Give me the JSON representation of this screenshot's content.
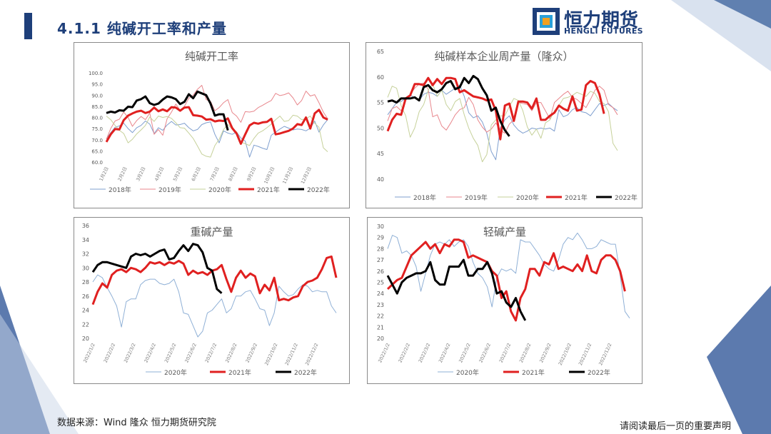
{
  "header": {
    "title": "4.1.1 纯碱开工率和产量",
    "logo_cn": "恒力期货",
    "logo_en": "HENGLI FUTURES"
  },
  "footer": {
    "source": "数据来源：Wind  隆众 恒力期货研究院",
    "disclaimer": "请阅读最后一页的重要声明"
  },
  "colors": {
    "brand": "#1e3f7a",
    "s2018": "#7f9fcf",
    "s2019": "#e8868c",
    "s2020_a": "#c6d19a",
    "s2021": "#e02020",
    "s2022": "#000000",
    "s2020_b": "#8fb0d6"
  },
  "chart_data": [
    {
      "type": "line",
      "title": "纯碱开工率",
      "y_ticks": [
        "100.0",
        "95.0",
        "90.0",
        "85.0",
        "80.0",
        "75.0",
        "70.0",
        "65.0",
        "60.0"
      ],
      "ylim": [
        60,
        100
      ],
      "x_ticks": [
        "1月2日",
        "2月2日",
        "3月2日",
        "4月2日",
        "5月2日",
        "6月2日",
        "7月2日",
        "8月2日",
        "9月2日",
        "10月2日",
        "11月2日",
        "12月2日"
      ],
      "x_count": 52,
      "series": [
        {
          "name": "2018年",
          "color": "#7f9fcf",
          "width": 1,
          "values": [
            70.4,
            73.2,
            75.6,
            76.2,
            77.4,
            75.0,
            73.2,
            75.4,
            76.4,
            78.4,
            77.0,
            72.8,
            75.4,
            74.2,
            76.6,
            78.2,
            76.6,
            76.8,
            77.4,
            75.4,
            74.0,
            74.6,
            76.8,
            77.6,
            78.0,
            72.4,
            68.6,
            74.0,
            73.0,
            72.4,
            73.4,
            70.8,
            69.4,
            62.2,
            67.6,
            67.0,
            66.2,
            65.6,
            72.0,
            73.4,
            74.8,
            76.0,
            75.2,
            74.4,
            74.8,
            74.6,
            74.0,
            75.2,
            78.4,
            73.4,
            76.6,
            79.0
          ]
        },
        {
          "name": "2019年",
          "color": "#e8868c",
          "width": 1,
          "values": [
            70.2,
            75.0,
            78.4,
            79.2,
            82.4,
            80.0,
            76.0,
            78.6,
            80.4,
            79.0,
            82.0,
            72.4,
            74.6,
            72.0,
            79.4,
            82.4,
            86.0,
            83.2,
            85.0,
            88.6,
            90.0,
            92.6,
            94.4,
            88.0,
            87.2,
            83.0,
            84.4,
            86.6,
            88.0,
            82.2,
            80.6,
            77.8,
            82.6,
            82.4,
            82.8,
            84.4,
            85.4,
            86.6,
            87.6,
            90.8,
            89.8,
            90.2,
            91.0,
            88.8,
            85.6,
            87.6,
            91.8,
            89.6,
            90.2,
            86.6,
            82.4,
            79.4
          ]
        },
        {
          "name": "2020年",
          "color": "#c6d19a",
          "width": 1,
          "values": [
            80.6,
            79.0,
            76.4,
            74.2,
            72.8,
            68.6,
            70.2,
            72.6,
            74.4,
            76.4,
            80.2,
            78.2,
            80.6,
            80.0,
            80.4,
            79.6,
            77.6,
            75.4,
            75.2,
            73.0,
            70.6,
            67.2,
            63.6,
            62.6,
            62.2,
            67.4,
            70.2,
            74.6,
            76.8,
            74.8,
            73.6,
            69.0,
            68.2,
            67.4,
            70.6,
            73.0,
            74.0,
            75.4,
            77.0,
            79.0,
            80.6,
            78.2,
            78.6,
            81.0,
            80.6,
            79.0,
            79.4,
            80.6,
            77.4,
            75.6,
            66.4,
            64.6
          ]
        },
        {
          "name": "2021年",
          "color": "#e02020",
          "width": 3,
          "values": [
            69.0,
            72.4,
            74.8,
            74.6,
            78.8,
            80.8,
            81.8,
            82.6,
            83.0,
            82.0,
            82.6,
            84.4,
            82.8,
            83.6,
            82.8,
            84.6,
            84.4,
            83.0,
            84.4,
            84.6,
            81.0,
            80.8,
            80.4,
            79.0,
            79.2,
            78.2,
            78.6,
            78.4,
            79.6,
            75.2,
            72.8,
            68.2,
            72.4,
            76.4,
            77.6,
            77.2,
            77.8,
            78.0,
            79.4,
            72.4,
            72.8,
            73.4,
            74.0,
            75.0,
            77.0,
            76.6,
            80.0,
            75.0,
            81.8,
            83.4,
            80.0,
            79.0
          ]
        },
        {
          "name": "2022年",
          "color": "#000000",
          "width": 3,
          "values": [
            82.0,
            82.6,
            82.2,
            83.2,
            83.0,
            84.8,
            84.6,
            87.6,
            88.2,
            89.4,
            86.4,
            85.6,
            86.2,
            88.0,
            89.4,
            89.0,
            88.2,
            86.0,
            87.0,
            90.4,
            88.6,
            91.6,
            90.8,
            90.0,
            86.2,
            80.8,
            81.4,
            81.4,
            74.2
          ]
        }
      ],
      "legend": [
        "2018年",
        "2019年",
        "2020年",
        "2021年",
        "2022年"
      ]
    },
    {
      "type": "line",
      "title": "纯碱样本企业周产量（隆众）",
      "y_ticks": [
        "65",
        "60",
        "55",
        "50",
        "45",
        "40"
      ],
      "ylim": [
        40,
        65
      ],
      "x_count": 52,
      "series": [
        {
          "name": "2018年",
          "color": "#7f9fcf",
          "width": 1,
          "values": [
            52.6,
            53.8,
            55.0,
            55.2,
            55.8,
            56.4,
            56.0,
            55.4,
            56.6,
            57.0,
            56.8,
            56.2,
            57.4,
            56.6,
            57.2,
            57.8,
            58.4,
            56.2,
            53.0,
            52.0,
            52.4,
            51.2,
            49.0,
            45.4,
            43.8,
            50.0,
            51.6,
            52.4,
            50.6,
            49.6,
            49.0,
            49.4,
            50.0,
            49.8,
            50.0,
            49.8,
            50.0,
            49.4,
            53.6,
            52.2,
            52.6,
            53.6,
            54.0,
            53.2,
            53.0,
            52.4,
            53.6,
            54.8,
            54.4,
            54.8,
            54.0,
            53.4
          ]
        },
        {
          "name": "2019年",
          "color": "#e8868c",
          "width": 1,
          "values": [
            51.4,
            53.8,
            54.2,
            53.4,
            55.4,
            56.6,
            57.8,
            58.6,
            58.8,
            57.6,
            52.2,
            52.6,
            50.4,
            49.6,
            51.0,
            52.6,
            53.6,
            54.0,
            56.0,
            54.6,
            51.6,
            50.2,
            49.2,
            49.8,
            51.0,
            49.6,
            49.0,
            50.8,
            51.6,
            55.0,
            54.8,
            54.6,
            53.4,
            55.0,
            55.0,
            53.4,
            51.8,
            55.0,
            55.8,
            56.6,
            57.2,
            56.0,
            55.6,
            54.8,
            54.0,
            55.6,
            57.4,
            58.2,
            57.4,
            54.6,
            54.0,
            52.6
          ]
        },
        {
          "name": "2020年",
          "color": "#c6d19a",
          "width": 1,
          "values": [
            56.0,
            58.2,
            57.8,
            54.4,
            52.4,
            48.2,
            50.0,
            53.2,
            54.6,
            57.4,
            58.6,
            56.2,
            57.4,
            54.6,
            53.4,
            55.2,
            55.8,
            52.6,
            50.0,
            48.0,
            46.6,
            43.4,
            44.8,
            50.6,
            51.6,
            52.4,
            52.4,
            54.2,
            55.8,
            55.4,
            53.4,
            50.2,
            48.6,
            49.8,
            48.0,
            51.0,
            51.6,
            53.4,
            54.4,
            55.8,
            56.0,
            56.4,
            57.0,
            56.6,
            56.2,
            57.2,
            56.8,
            55.2,
            54.8,
            53.2,
            47.0,
            45.6
          ]
        },
        {
          "name": "2021年",
          "color": "#e02020",
          "width": 3,
          "values": [
            49.4,
            51.6,
            52.8,
            52.6,
            55.8,
            56.4,
            58.6,
            58.6,
            58.4,
            59.8,
            58.4,
            59.6,
            58.6,
            59.8,
            59.8,
            59.6,
            57.0,
            57.4,
            56.8,
            56.2,
            56.0,
            55.8,
            55.4,
            55.6,
            53.4,
            47.8,
            54.4,
            54.8,
            51.4,
            55.2,
            55.2,
            55.0,
            53.8,
            55.8,
            51.6,
            51.6,
            52.4,
            53.0,
            54.4,
            53.8,
            53.4,
            56.2,
            53.4,
            53.6,
            58.4,
            59.2,
            58.8,
            56.6,
            52.8
          ]
        },
        {
          "name": "2022年",
          "color": "#000000",
          "width": 3,
          "values": [
            55.2,
            55.4,
            55.0,
            55.8,
            55.8,
            55.8,
            56.0,
            55.4,
            58.0,
            58.4,
            57.4,
            57.0,
            57.6,
            58.8,
            59.2,
            57.6,
            58.0,
            59.8,
            58.8,
            60.2,
            59.6,
            57.8,
            56.4,
            53.4,
            54.0,
            51.4,
            49.6,
            48.4
          ]
        }
      ],
      "legend": [
        "2018年",
        "2019年",
        "2020年",
        "2021年",
        "2022年"
      ]
    },
    {
      "type": "line",
      "title": "重碱产量",
      "y_ticks": [
        "36",
        "34",
        "32",
        "30",
        "28",
        "26",
        "24",
        "22",
        "20"
      ],
      "ylim": [
        20,
        36
      ],
      "x_ticks": [
        "2022/1/2",
        "2022/2/2",
        "2022/3/2",
        "2022/4/2",
        "2022/5/2",
        "2022/6/2",
        "2022/7/2",
        "2022/8/2",
        "2022/9/2",
        "2022/10/2",
        "2022/11/2",
        "2022/12/2"
      ],
      "x_count": 52,
      "series": [
        {
          "name": "2020年",
          "color": "#8fb0d6",
          "width": 1,
          "values": [
            28.0,
            29.0,
            28.6,
            27.2,
            26.0,
            24.6,
            21.6,
            25.2,
            25.6,
            25.6,
            27.6,
            28.2,
            28.4,
            28.4,
            27.8,
            27.6,
            27.8,
            28.4,
            26.6,
            23.6,
            23.4,
            21.8,
            20.2,
            21.0,
            23.6,
            24.0,
            24.8,
            25.6,
            23.6,
            24.2,
            26.0,
            26.0,
            26.6,
            26.8,
            25.6,
            24.2,
            24.0,
            21.8,
            23.6,
            27.4,
            26.6,
            26.0,
            26.2,
            27.0,
            27.6,
            27.4,
            26.6,
            26.8,
            26.6,
            26.6,
            24.6,
            23.6
          ]
        },
        {
          "name": "2021年",
          "color": "#e02020",
          "width": 3,
          "values": [
            24.8,
            26.6,
            27.8,
            27.2,
            29.0,
            29.6,
            29.8,
            29.4,
            30.0,
            29.8,
            29.4,
            30.0,
            30.8,
            30.6,
            30.8,
            30.4,
            30.8,
            30.6,
            31.0,
            30.6,
            29.0,
            29.6,
            29.2,
            29.4,
            29.0,
            29.6,
            29.8,
            30.4,
            28.4,
            26.6,
            28.6,
            29.6,
            28.6,
            29.2,
            28.8,
            26.4,
            27.6,
            26.8,
            28.6,
            25.4,
            25.6,
            25.4,
            25.8,
            26.0,
            27.4,
            28.0,
            28.2,
            28.6,
            29.8,
            31.4,
            31.6,
            28.6
          ]
        },
        {
          "name": "2022年",
          "color": "#000000",
          "width": 3,
          "values": [
            29.4,
            30.4,
            30.8,
            30.8,
            30.6,
            30.4,
            30.2,
            30.0,
            31.6,
            32.0,
            31.8,
            32.0,
            31.6,
            32.0,
            32.4,
            32.6,
            31.2,
            31.4,
            32.4,
            33.2,
            32.4,
            33.4,
            33.2,
            32.2,
            30.0,
            29.6,
            27.0,
            26.4
          ]
        }
      ],
      "legend": [
        "2020年",
        "2021年",
        "2022年"
      ]
    },
    {
      "type": "line",
      "title": "轻碱产量",
      "y_ticks": [
        "30",
        "29",
        "28",
        "27",
        "26",
        "25",
        "24",
        "23",
        "22",
        "21",
        "20"
      ],
      "ylim": [
        20,
        30
      ],
      "x_ticks": [
        "2022/1/2",
        "2022/2/2",
        "2022/3/2",
        "2022/4/2",
        "2022/5/2",
        "2022/6/2",
        "2022/7/2",
        "2022/8/2",
        "2022/9/2",
        "2022/10/2",
        "2022/11/2",
        "2022/12/2"
      ],
      "x_count": 52,
      "series": [
        {
          "name": "2020年",
          "color": "#8fb0d6",
          "width": 1,
          "values": [
            28.0,
            29.2,
            29.0,
            27.6,
            27.8,
            27.4,
            26.4,
            24.2,
            25.8,
            27.4,
            28.4,
            28.6,
            28.4,
            28.8,
            28.2,
            28.6,
            28.8,
            28.2,
            26.8,
            25.8,
            25.4,
            24.6,
            22.8,
            25.4,
            26.2,
            26.0,
            26.2,
            25.8,
            28.8,
            28.6,
            28.6,
            28.0,
            27.4,
            26.6,
            26.2,
            26.0,
            27.0,
            28.4,
            29.0,
            28.8,
            29.4,
            28.8,
            28.0,
            28.0,
            28.2,
            28.8,
            28.6,
            28.4,
            28.4,
            25.6,
            22.4,
            21.8
          ]
        },
        {
          "name": "2021年",
          "color": "#e02020",
          "width": 3,
          "values": [
            24.4,
            24.8,
            25.2,
            25.4,
            26.4,
            27.4,
            27.8,
            28.2,
            28.6,
            28.0,
            28.4,
            27.6,
            28.4,
            28.2,
            28.8,
            28.8,
            28.6,
            27.2,
            27.4,
            27.2,
            27.0,
            26.8,
            26.0,
            25.6,
            23.6,
            24.2,
            22.4,
            21.6,
            23.6,
            24.4,
            26.2,
            26.2,
            25.6,
            26.8,
            26.6,
            27.6,
            26.2,
            26.4,
            26.2,
            26.0,
            26.6,
            26.0,
            27.4,
            26.0,
            25.8,
            27.0,
            27.4,
            27.4,
            27.0,
            26.0,
            24.2
          ]
        },
        {
          "name": "2022年",
          "color": "#000000",
          "width": 3,
          "values": [
            25.6,
            24.8,
            24.0,
            25.0,
            25.4,
            25.6,
            25.8,
            25.8,
            26.0,
            26.8,
            25.2,
            24.8,
            24.8,
            26.4,
            26.4,
            26.4,
            27.0,
            25.6,
            25.6,
            26.2,
            26.2,
            26.8,
            25.8,
            24.0,
            24.2,
            23.2,
            22.8,
            23.6,
            22.4,
            21.6
          ]
        }
      ],
      "legend": [
        "2020年",
        "2021年",
        "2022年"
      ]
    }
  ]
}
